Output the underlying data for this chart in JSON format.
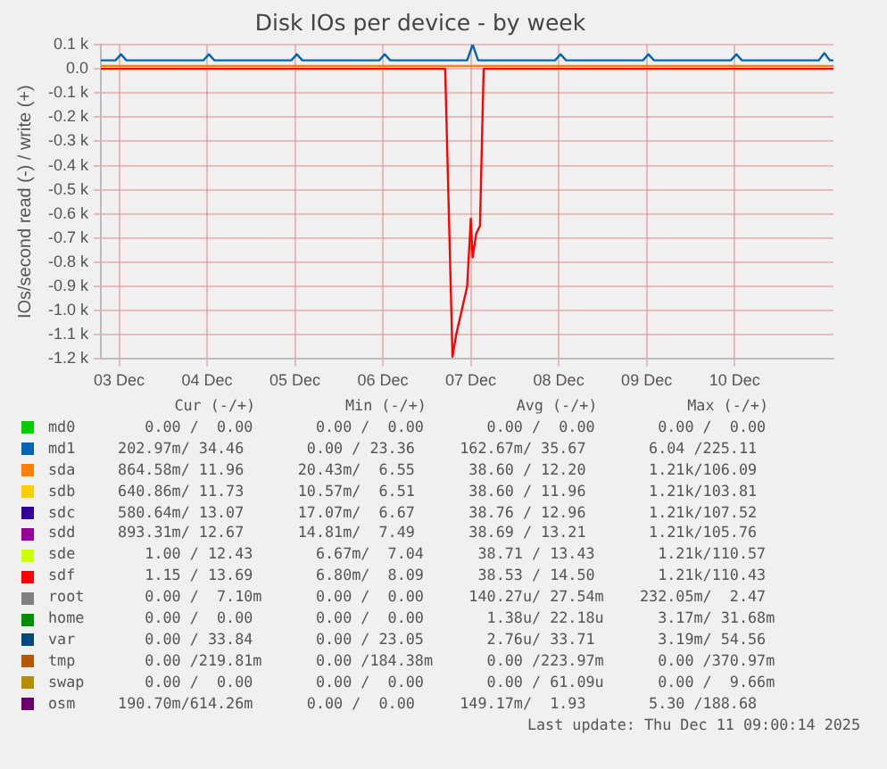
{
  "chart_data": {
    "type": "line",
    "title": "Disk IOs per device - by week",
    "ylabel": "IOs/second read (-) / write (+)",
    "xlim": [
      "2025-12-02T19:00",
      "2025-12-11T03:00"
    ],
    "xticks": [
      {
        "value": "2025-12-03",
        "label": "03 Dec"
      },
      {
        "value": "2025-12-04",
        "label": "04 Dec"
      },
      {
        "value": "2025-12-05",
        "label": "05 Dec"
      },
      {
        "value": "2025-12-06",
        "label": "06 Dec"
      },
      {
        "value": "2025-12-07",
        "label": "07 Dec"
      },
      {
        "value": "2025-12-08",
        "label": "08 Dec"
      },
      {
        "value": "2025-12-09",
        "label": "09 Dec"
      },
      {
        "value": "2025-12-10",
        "label": "10 Dec"
      }
    ],
    "ylim": [
      -1200,
      100
    ],
    "yticks": [
      {
        "value": 100,
        "label": "0.1 k"
      },
      {
        "value": 0,
        "label": "0.0"
      },
      {
        "value": -100,
        "label": "-0.1 k"
      },
      {
        "value": -200,
        "label": "-0.2 k"
      },
      {
        "value": -300,
        "label": "-0.3 k"
      },
      {
        "value": -400,
        "label": "-0.4 k"
      },
      {
        "value": -500,
        "label": "-0.5 k"
      },
      {
        "value": -600,
        "label": "-0.6 k"
      },
      {
        "value": -700,
        "label": "-0.7 k"
      },
      {
        "value": -800,
        "label": "-0.8 k"
      },
      {
        "value": -900,
        "label": "-0.9 k"
      },
      {
        "value": -1000,
        "label": "-1.0 k"
      },
      {
        "value": -1100,
        "label": "-1.1 k"
      },
      {
        "value": -1200,
        "label": "-1.2 k"
      }
    ],
    "grid": true,
    "legend": "bottom",
    "marker": "none",
    "line_style": "solid",
    "series": [
      {
        "name": "md0",
        "color": "#00cc00"
      },
      {
        "name": "md1",
        "color": "#0066b3",
        "x": [
          "2025-12-02T19:00",
          "2025-12-02T23:00",
          "2025-12-03T00:30",
          "2025-12-03T02:00",
          "2025-12-03T23:00",
          "2025-12-04T00:30",
          "2025-12-04T02:00",
          "2025-12-04T23:00",
          "2025-12-05T00:30",
          "2025-12-05T02:00",
          "2025-12-05T23:00",
          "2025-12-06T00:30",
          "2025-12-06T02:00",
          "2025-12-06T23:00",
          "2025-12-07T00:30",
          "2025-12-07T02:00",
          "2025-12-07T23:00",
          "2025-12-08T00:30",
          "2025-12-08T02:00",
          "2025-12-08T23:00",
          "2025-12-09T00:30",
          "2025-12-09T02:00",
          "2025-12-09T23:00",
          "2025-12-10T00:30",
          "2025-12-10T02:00",
          "2025-12-10T23:00",
          "2025-12-11T00:30",
          "2025-12-11T02:00",
          "2025-12-11T03:00"
        ],
        "values": [
          35,
          35,
          60,
          35,
          35,
          60,
          35,
          35,
          60,
          35,
          35,
          60,
          35,
          35,
          100,
          35,
          35,
          60,
          35,
          35,
          60,
          35,
          35,
          60,
          35,
          35,
          65,
          35,
          35
        ]
      },
      {
        "name": "sda",
        "color": "#ff8000",
        "x": [
          "2025-12-02T19:00",
          "2025-12-11T03:00"
        ],
        "values": [
          12,
          12
        ]
      },
      {
        "name": "sdb",
        "color": "#ffcc00"
      },
      {
        "name": "sdc",
        "color": "#330099"
      },
      {
        "name": "sdd",
        "color": "#990099"
      },
      {
        "name": "sde",
        "color": "#ccff00"
      },
      {
        "name": "sdf",
        "color": "#ff0000",
        "x": [
          "2025-12-02T19:00",
          "2025-12-06T17:00",
          "2025-12-06T19:00",
          "2025-12-06T20:00",
          "2025-12-06T21:30",
          "2025-12-06T23:00",
          "2025-12-07T00:00",
          "2025-12-07T00:30",
          "2025-12-07T01:30",
          "2025-12-07T02:30",
          "2025-12-07T03:30",
          "2025-12-11T03:00"
        ],
        "values": [
          0,
          0,
          -1190,
          -1100,
          -1000,
          -900,
          -620,
          -780,
          -680,
          -650,
          0,
          0
        ]
      },
      {
        "name": "root",
        "color": "#808080"
      },
      {
        "name": "home",
        "color": "#008f00"
      },
      {
        "name": "var",
        "color": "#00487d"
      },
      {
        "name": "tmp",
        "color": "#b35a00"
      },
      {
        "name": "swap",
        "color": "#b38f00"
      },
      {
        "name": "osm",
        "color": "#6b006b"
      }
    ],
    "annotations": [
      "     Cur (-/+)          Min (-/+)          Avg (-/+)          Max (-/+)",
      "    0.00 /  0.00       0.00 /  0.00       0.00 /  0.00       0.00 /  0.00",
      " 202.97m/ 34.46       0.00 / 23.36     162.67m/ 35.67       6.04 /225.11",
      " 864.58m/ 11.96      20.43m/  6.55      38.60 / 12.20       1.21k/106.09",
      " 640.86m/ 11.73      10.57m/  6.51      38.60 / 11.96       1.21k/103.81",
      " 580.64m/ 13.07      17.07m/  6.67      38.76 / 12.96       1.21k/107.52",
      " 893.31m/ 12.67      14.81m/  7.49      38.69 / 13.21       1.21k/105.76",
      "    1.00 / 12.43       6.67m/  7.04      38.71 / 13.43       1.21k/110.57",
      "    1.15 / 13.69       6.80m/  8.09      38.53 / 14.50       1.21k/110.43",
      "    0.00 /  7.10m      0.00 /  0.00     140.27u/ 27.54m    232.05m/  2.47",
      "    0.00 /  0.00       0.00 /  0.00       1.38u/ 22.18u      3.17m/ 31.68m",
      "    0.00 / 33.84       0.00 / 23.05       2.76u/ 33.71       3.19m/ 54.56",
      "    0.00 /219.81m      0.00 /184.38m      0.00 /223.97m      0.00 /370.97m",
      "    0.00 /  0.00       0.00 /  0.00       0.00 / 61.09u      0.00 /  9.66m",
      " 190.70m/614.26m      0.00 /  0.00     149.17m/  1.93       5.30 /188.68",
      "Last update: Thu Dec 11 09:00:14 2025"
    ]
  }
}
